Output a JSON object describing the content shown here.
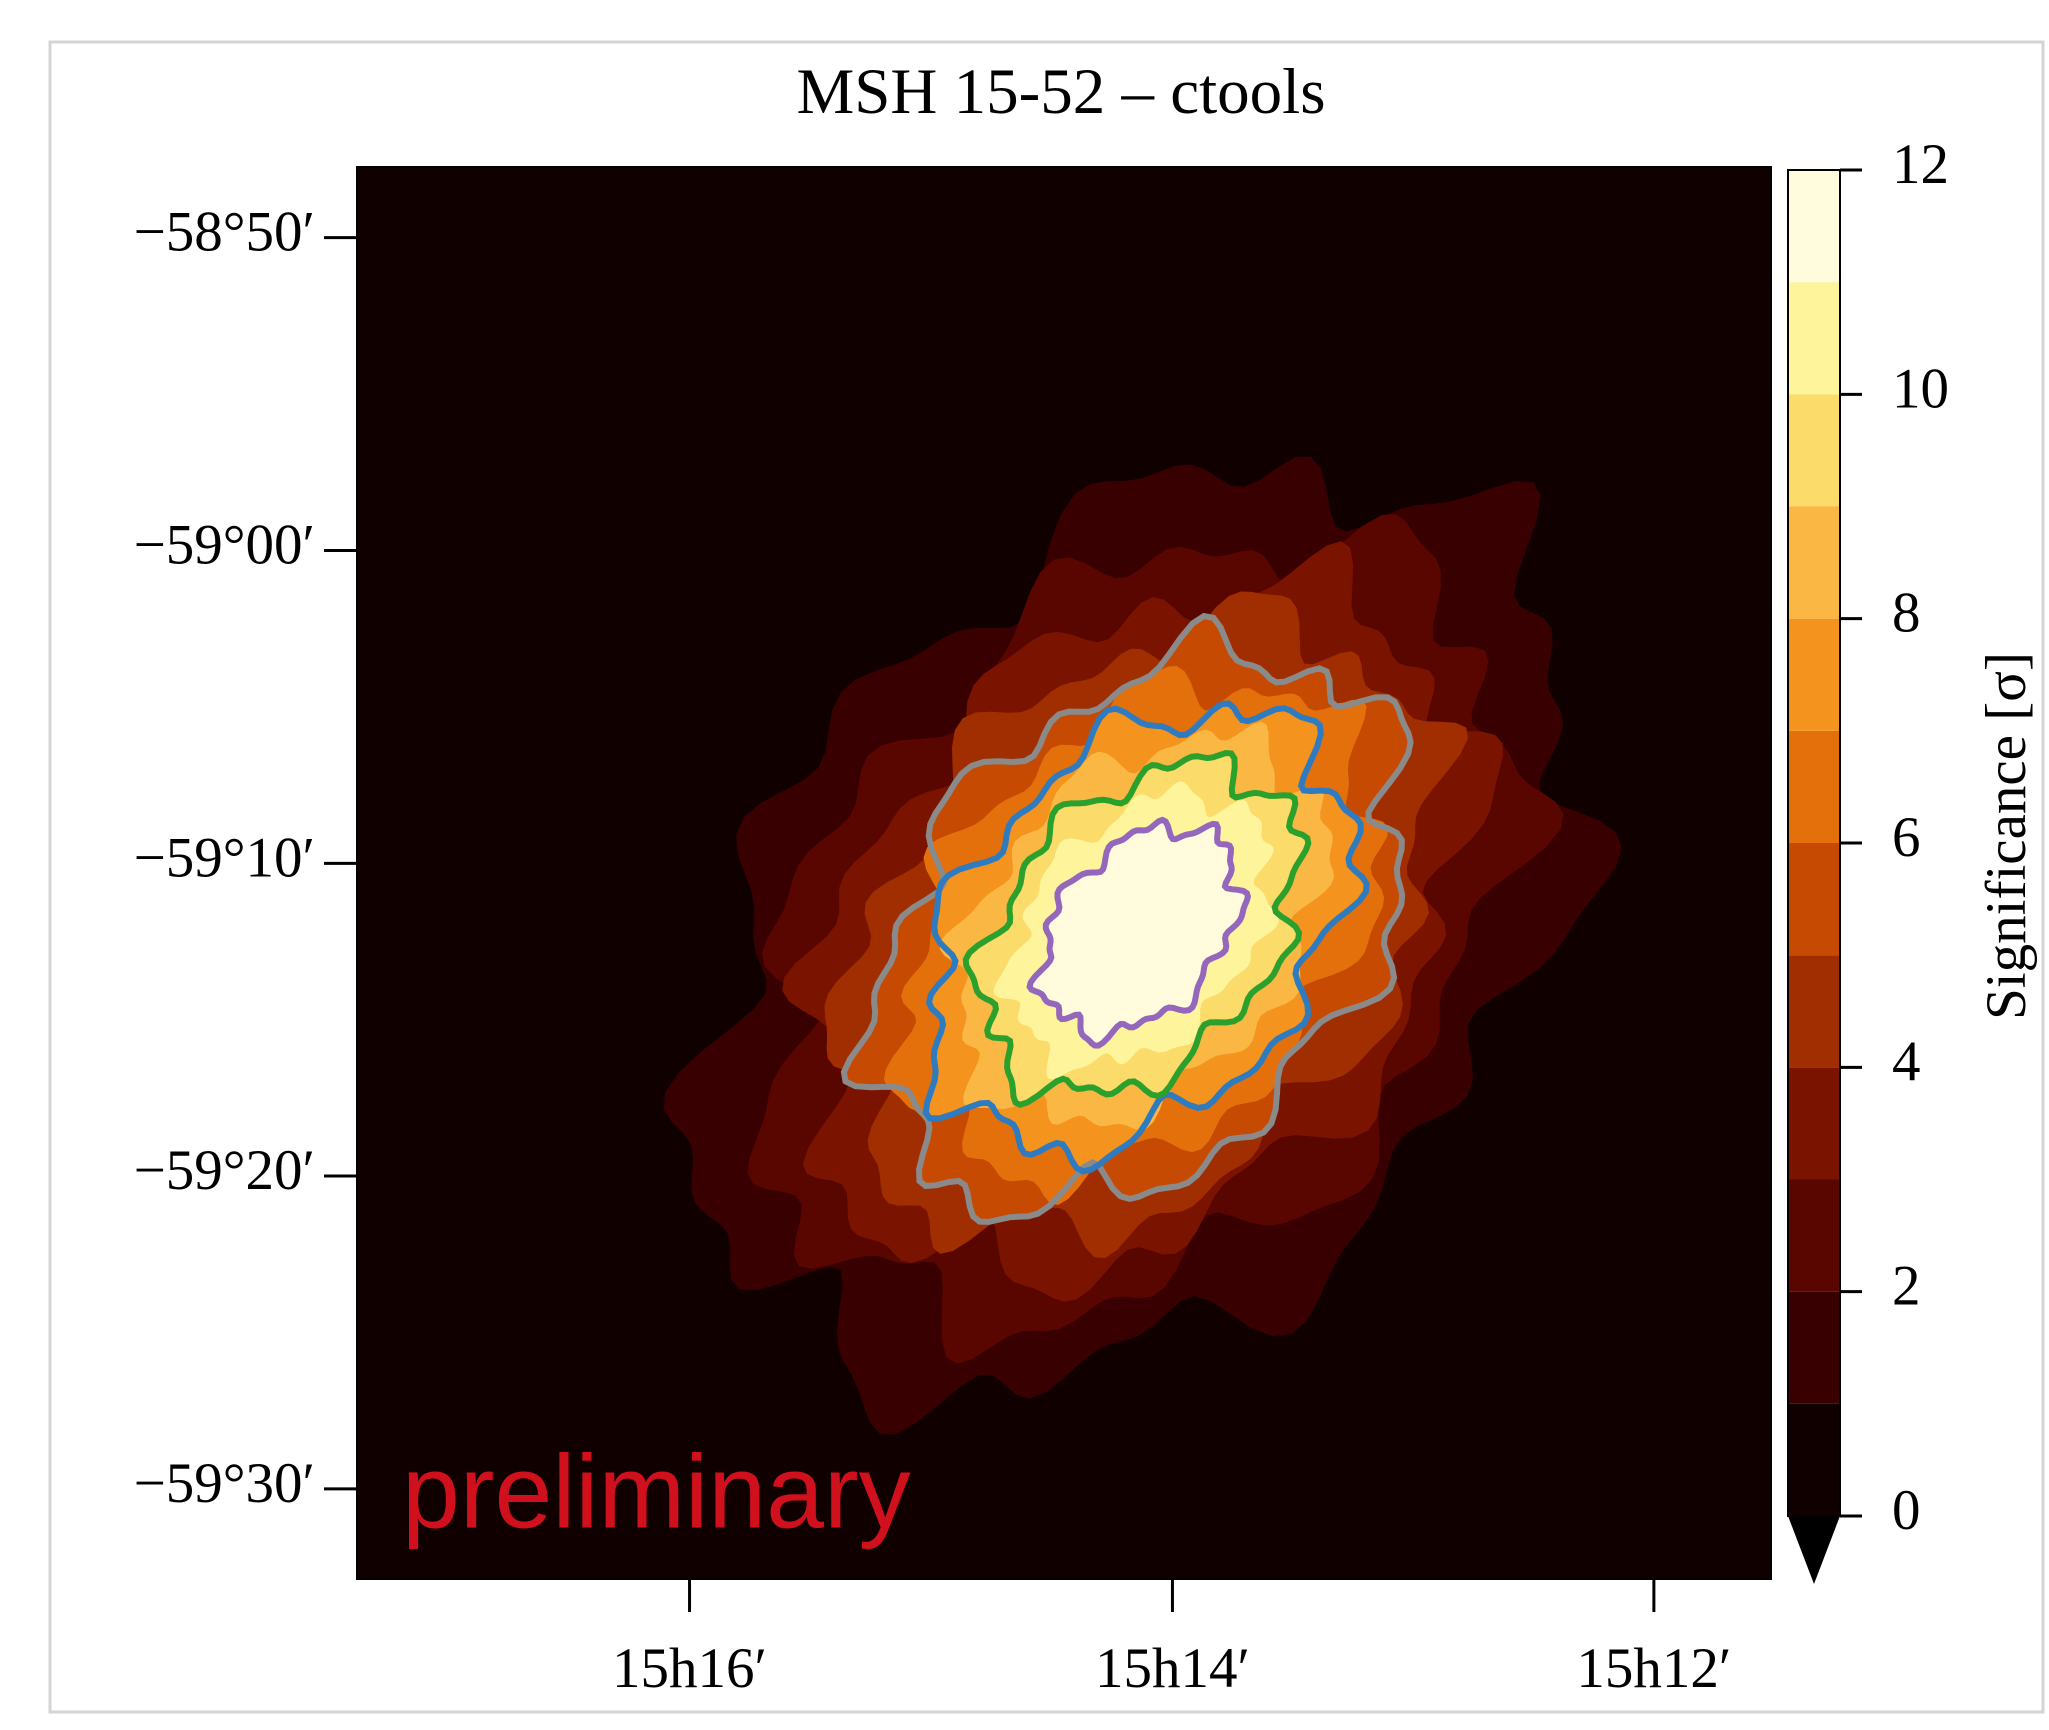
{
  "chart_data": {
    "type": "heatmap",
    "title": "MSH 15-52 – ctools",
    "xlim": [
      15.2897,
      15.1919
    ],
    "xticks": [
      {
        "value": 15.2667,
        "label": "15h16′"
      },
      {
        "value": 15.2333,
        "label": "15h14′"
      },
      {
        "value": 15.2,
        "label": "15h12′"
      }
    ],
    "ylim": [
      -59.548,
      -58.7957
    ],
    "yticks": [
      {
        "value": -58.8333,
        "label": "−58°50′"
      },
      {
        "value": -59,
        "label": "−59°00′"
      },
      {
        "value": -59.1667,
        "label": "−59°10′"
      },
      {
        "value": -59.3333,
        "label": "−59°20′"
      },
      {
        "value": -59.5,
        "label": "−59°30′"
      }
    ],
    "colorbar": {
      "label": "Significance [σ]",
      "lim": [
        0,
        12
      ],
      "ticks": [
        0,
        2,
        4,
        6,
        8,
        10,
        12
      ],
      "levels": [
        0,
        1,
        2,
        3,
        4,
        5,
        6,
        7,
        8,
        9,
        10,
        11,
        12
      ],
      "colors": [
        "#110000",
        "#380000",
        "#5a0600",
        "#7a1400",
        "#a02e00",
        "#c64a02",
        "#e4700c",
        "#f5931f",
        "#fab743",
        "#fbdc6a",
        "#fdf49c",
        "#fffbdc"
      ]
    },
    "contours": [
      {
        "level": 5,
        "color": "#8a8a8a"
      },
      {
        "level": 7,
        "color": "#2f7bbf"
      },
      {
        "level": 9,
        "color": "#2ca02c"
      },
      {
        "level": 11,
        "color": "#9467bd"
      }
    ],
    "annotation": "preliminary"
  }
}
